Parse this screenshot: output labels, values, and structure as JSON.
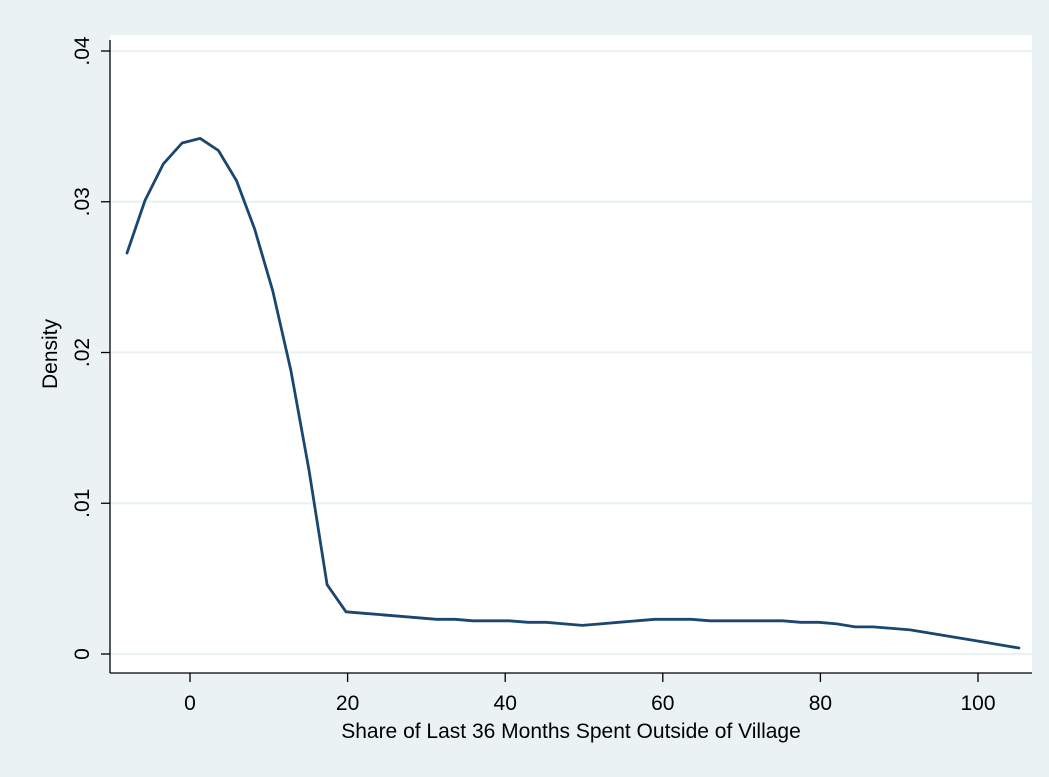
{
  "chart_data": {
    "type": "line",
    "xlabel": "Share of Last 36 Months Spent Outside of Village",
    "ylabel": "Density",
    "xlim": [
      -10,
      107
    ],
    "ylim": [
      0,
      0.04
    ],
    "x_ticks": [
      0,
      20,
      40,
      60,
      80,
      100
    ],
    "x_tick_labels": [
      "0",
      "20",
      "40",
      "60",
      "80",
      "100"
    ],
    "y_ticks": [
      0,
      0.01,
      0.02,
      0.03,
      0.04
    ],
    "y_tick_labels": [
      "0",
      ".01",
      ".02",
      ".03",
      ".04"
    ],
    "grid": "horizontal",
    "legend": "none",
    "colors": {
      "outer_background": "#eaf2f3",
      "plot_background": "#ffffff",
      "line": "#1a476f",
      "grid": "#eaf2f3",
      "axis": "#000000"
    },
    "series": [
      {
        "x": [
          -8.0,
          -5.7,
          -3.4,
          -1.0,
          1.3,
          3.6,
          5.9,
          8.2,
          10.5,
          12.8,
          15.1,
          17.4,
          19.8,
          22.1,
          24.4,
          26.7,
          29.0,
          31.3,
          33.6,
          35.9,
          38.2,
          40.5,
          42.9,
          45.2,
          47.5,
          49.8,
          52.1,
          54.4,
          56.7,
          59.0,
          61.3,
          63.6,
          66.0,
          68.3,
          70.6,
          72.9,
          75.2,
          77.5,
          79.8,
          82.1,
          84.4,
          86.7,
          89.1,
          91.4,
          93.7,
          96.0,
          98.3,
          100.6,
          102.9,
          105.2
        ],
        "y": [
          0.0266,
          0.0301,
          0.0325,
          0.0339,
          0.0342,
          0.0334,
          0.0314,
          0.0282,
          0.0241,
          0.0188,
          0.0122,
          0.0046,
          0.0028,
          0.0027,
          0.0026,
          0.0025,
          0.0024,
          0.0023,
          0.0023,
          0.0022,
          0.0022,
          0.0022,
          0.0021,
          0.0021,
          0.002,
          0.0019,
          0.002,
          0.0021,
          0.0022,
          0.0023,
          0.0023,
          0.0023,
          0.0022,
          0.0022,
          0.0022,
          0.0022,
          0.0022,
          0.0021,
          0.0021,
          0.002,
          0.0018,
          0.0018,
          0.0017,
          0.0016,
          0.0014,
          0.0012,
          0.001,
          0.0008,
          0.0006,
          0.0004
        ]
      }
    ]
  }
}
